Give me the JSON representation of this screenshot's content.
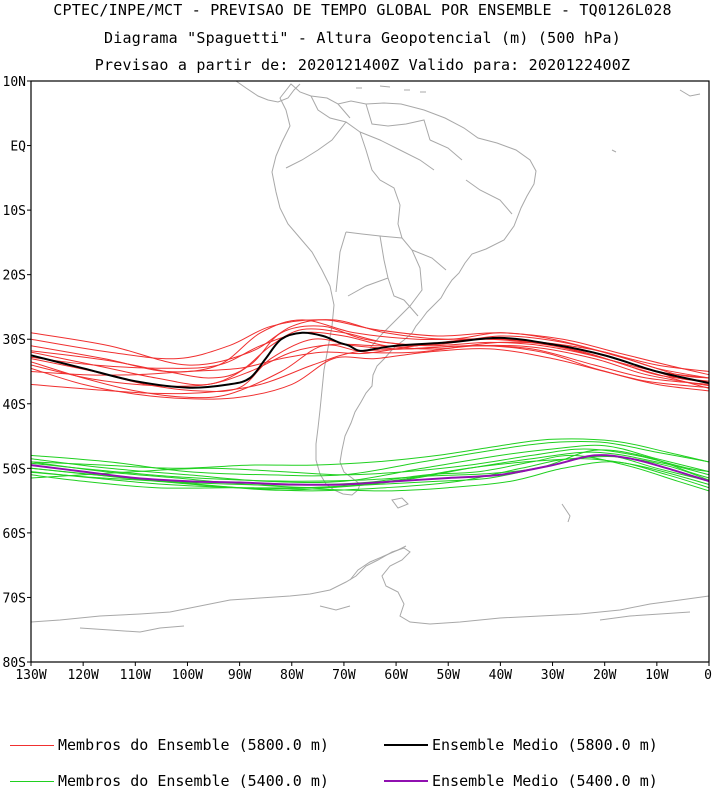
{
  "titles": {
    "line1": "CPTEC/INPE/MCT - PREVISAO DE TEMPO GLOBAL POR ENSEMBLE - TQ0126L028",
    "line2": "Diagrama \"Spaguetti\" - Altura Geopotencial (m) (500 hPa)",
    "line3": "Previsao a partir de: 2020121400Z  Valido para: 2020122400Z"
  },
  "axes": {
    "lat_ticks": [
      "10N",
      "EQ",
      "10S",
      "20S",
      "30S",
      "40S",
      "50S",
      "60S",
      "70S",
      "80S"
    ],
    "lon_ticks": [
      "130W",
      "120W",
      "110W",
      "100W",
      "90W",
      "80W",
      "70W",
      "60W",
      "50W",
      "40W",
      "30W",
      "20W",
      "10W",
      "0"
    ]
  },
  "legend": [
    {
      "label": "Membros do Ensemble (5800.0 m)",
      "color": "#f03030",
      "kind": "member"
    },
    {
      "label": "Ensemble Medio (5800.0 m)",
      "color": "#000000",
      "kind": "mean"
    },
    {
      "label": "Membros do Ensemble (5400.0 m)",
      "color": "#20d020",
      "kind": "member"
    },
    {
      "label": "Ensemble Medio (5400.0 m)",
      "color": "#9010b0",
      "kind": "mean"
    }
  ],
  "colors": {
    "coast": "#a8a8a8",
    "c5800_members": "#f03030",
    "c5800_mean": "#000000",
    "c5400_members": "#20d020",
    "c5400_mean": "#9010b0"
  },
  "map_extent": {
    "lon": [
      -130,
      0
    ],
    "lat": [
      -80,
      10
    ]
  },
  "contours": {
    "c5800_mean": [
      [
        -130,
        -32.5
      ],
      [
        -120,
        -34.5
      ],
      [
        -110,
        -36.5
      ],
      [
        -100,
        -37.5
      ],
      [
        -92,
        -37
      ],
      [
        -88,
        -36
      ],
      [
        -85,
        -33
      ],
      [
        -82,
        -30
      ],
      [
        -78,
        -29
      ],
      [
        -74,
        -29.5
      ],
      [
        -71,
        -30.5
      ],
      [
        -69,
        -31
      ],
      [
        -67,
        -31.8
      ],
      [
        -64,
        -31.5
      ],
      [
        -60,
        -31
      ],
      [
        -50,
        -30.5
      ],
      [
        -40,
        -29.8
      ],
      [
        -30,
        -30.8
      ],
      [
        -20,
        -32.5
      ],
      [
        -10,
        -35
      ],
      [
        0,
        -36.8
      ]
    ],
    "c5800_members": [
      [
        [
          -130,
          -29
        ],
        [
          -115,
          -31
        ],
        [
          -100,
          -34
        ],
        [
          -88,
          -32
        ],
        [
          -80,
          -28
        ],
        [
          -72,
          -27
        ],
        [
          -62,
          -29
        ],
        [
          -50,
          -30
        ],
        [
          -40,
          -29
        ],
        [
          -30,
          -30
        ],
        [
          -20,
          -32
        ],
        [
          -10,
          -34
        ],
        [
          0,
          -35
        ]
      ],
      [
        [
          -130,
          -30
        ],
        [
          -115,
          -32
        ],
        [
          -102,
          -33
        ],
        [
          -92,
          -31
        ],
        [
          -84,
          -28
        ],
        [
          -74,
          -27
        ],
        [
          -64,
          -28.5
        ],
        [
          -52,
          -29.5
        ],
        [
          -40,
          -29
        ],
        [
          -28,
          -30
        ],
        [
          -18,
          -32
        ],
        [
          -8,
          -34
        ],
        [
          0,
          -35.5
        ]
      ],
      [
        [
          -130,
          -31
        ],
        [
          -116,
          -33
        ],
        [
          -104,
          -35
        ],
        [
          -94,
          -34
        ],
        [
          -86,
          -29
        ],
        [
          -78,
          -27
        ],
        [
          -68,
          -29
        ],
        [
          -56,
          -30
        ],
        [
          -42,
          -30
        ],
        [
          -30,
          -31
        ],
        [
          -20,
          -33
        ],
        [
          -10,
          -35
        ],
        [
          0,
          -36
        ]
      ],
      [
        [
          -130,
          -32
        ],
        [
          -118,
          -34
        ],
        [
          -106,
          -36
        ],
        [
          -96,
          -37
        ],
        [
          -88,
          -34
        ],
        [
          -82,
          -29
        ],
        [
          -74,
          -28
        ],
        [
          -66,
          -30
        ],
        [
          -54,
          -31
        ],
        [
          -42,
          -30.5
        ],
        [
          -32,
          -31
        ],
        [
          -20,
          -33
        ],
        [
          -10,
          -35.5
        ],
        [
          0,
          -36.5
        ]
      ],
      [
        [
          -130,
          -33
        ],
        [
          -118,
          -35
        ],
        [
          -108,
          -37
        ],
        [
          -98,
          -38
        ],
        [
          -90,
          -37.5
        ],
        [
          -84,
          -33
        ],
        [
          -76,
          -30
        ],
        [
          -68,
          -31
        ],
        [
          -58,
          -31.5
        ],
        [
          -46,
          -31
        ],
        [
          -34,
          -31.5
        ],
        [
          -22,
          -34
        ],
        [
          -12,
          -36
        ],
        [
          0,
          -37
        ]
      ],
      [
        [
          -130,
          -33.5
        ],
        [
          -120,
          -36
        ],
        [
          -110,
          -38
        ],
        [
          -100,
          -39
        ],
        [
          -92,
          -38.5
        ],
        [
          -82,
          -35
        ],
        [
          -74,
          -31
        ],
        [
          -66,
          -32
        ],
        [
          -56,
          -32
        ],
        [
          -44,
          -31
        ],
        [
          -32,
          -32
        ],
        [
          -22,
          -34.5
        ],
        [
          -12,
          -36.5
        ],
        [
          0,
          -37.5
        ]
      ],
      [
        [
          -130,
          -34.5
        ],
        [
          -120,
          -37
        ],
        [
          -110,
          -38.5
        ],
        [
          -100,
          -39.2
        ],
        [
          -90,
          -39
        ],
        [
          -80,
          -37
        ],
        [
          -72,
          -33
        ],
        [
          -64,
          -33
        ],
        [
          -54,
          -32
        ],
        [
          -42,
          -31.5
        ],
        [
          -30,
          -33
        ],
        [
          -20,
          -35
        ],
        [
          -10,
          -37
        ],
        [
          0,
          -38
        ]
      ],
      [
        [
          -130,
          -37
        ],
        [
          -118,
          -37.8
        ],
        [
          -106,
          -38.4
        ],
        [
          -96,
          -38.2
        ],
        [
          -86,
          -37
        ],
        [
          -76,
          -34
        ],
        [
          -68,
          -32
        ],
        [
          -58,
          -31.5
        ],
        [
          -46,
          -31
        ],
        [
          -34,
          -31.2
        ],
        [
          -22,
          -33
        ],
        [
          -12,
          -35.5
        ],
        [
          0,
          -37.2
        ]
      ],
      [
        [
          -130,
          -35
        ],
        [
          -120,
          -35.5
        ],
        [
          -110,
          -35.5
        ],
        [
          -100,
          -35
        ],
        [
          -90,
          -34.5
        ],
        [
          -82,
          -33
        ],
        [
          -74,
          -32
        ],
        [
          -66,
          -32.2
        ],
        [
          -56,
          -31
        ],
        [
          -44,
          -30
        ],
        [
          -32,
          -30.5
        ],
        [
          -20,
          -32
        ],
        [
          -10,
          -34.5
        ],
        [
          0,
          -36
        ]
      ],
      [
        [
          -130,
          -32.8
        ],
        [
          -118,
          -34
        ],
        [
          -104,
          -34.5
        ],
        [
          -94,
          -34
        ],
        [
          -86,
          -31
        ],
        [
          -78,
          -29
        ],
        [
          -70,
          -29.5
        ],
        [
          -62,
          -31
        ],
        [
          -52,
          -31.5
        ],
        [
          -40,
          -30.5
        ],
        [
          -28,
          -31
        ],
        [
          -16,
          -33.5
        ],
        [
          -6,
          -36
        ],
        [
          0,
          -36.5
        ]
      ],
      [
        [
          -130,
          -31.8
        ],
        [
          -116,
          -33.2
        ],
        [
          -104,
          -35
        ],
        [
          -96,
          -36
        ],
        [
          -90,
          -35
        ],
        [
          -84,
          -31
        ],
        [
          -78,
          -28.5
        ],
        [
          -70,
          -29
        ],
        [
          -62,
          -30.5
        ],
        [
          -52,
          -30.8
        ],
        [
          -40,
          -29.5
        ],
        [
          -28,
          -30.5
        ],
        [
          -16,
          -33
        ],
        [
          -6,
          -35.5
        ],
        [
          0,
          -36
        ]
      ],
      [
        [
          -130,
          -34
        ],
        [
          -118,
          -36.2
        ],
        [
          -106,
          -37.2
        ],
        [
          -96,
          -37
        ],
        [
          -88,
          -35
        ],
        [
          -80,
          -32
        ],
        [
          -72,
          -30.8
        ],
        [
          -64,
          -31
        ],
        [
          -56,
          -31
        ],
        [
          -46,
          -30
        ],
        [
          -36,
          -30.2
        ],
        [
          -24,
          -32
        ],
        [
          -14,
          -34.5
        ],
        [
          0,
          -37.6
        ]
      ]
    ],
    "c5400_mean": [
      [
        -130,
        -49.5
      ],
      [
        -120,
        -50.5
      ],
      [
        -110,
        -51.5
      ],
      [
        -100,
        -52
      ],
      [
        -90,
        -52.2
      ],
      [
        -80,
        -52.5
      ],
      [
        -70,
        -52.5
      ],
      [
        -60,
        -52
      ],
      [
        -50,
        -51.5
      ],
      [
        -40,
        -51
      ],
      [
        -30,
        -49.5
      ],
      [
        -22,
        -48
      ],
      [
        -15,
        -48.5
      ],
      [
        -8,
        -50
      ],
      [
        0,
        -52
      ]
    ],
    "c5400_members": [
      [
        [
          -130,
          -48
        ],
        [
          -115,
          -49
        ],
        [
          -100,
          -50.5
        ],
        [
          -85,
          -51
        ],
        [
          -70,
          -51
        ],
        [
          -55,
          -49
        ],
        [
          -40,
          -47
        ],
        [
          -30,
          -46
        ],
        [
          -20,
          -46
        ],
        [
          -10,
          -47.5
        ],
        [
          0,
          -49
        ]
      ],
      [
        [
          -130,
          -48.5
        ],
        [
          -115,
          -50
        ],
        [
          -100,
          -51
        ],
        [
          -85,
          -52
        ],
        [
          -70,
          -52
        ],
        [
          -55,
          -50
        ],
        [
          -40,
          -48
        ],
        [
          -30,
          -47
        ],
        [
          -20,
          -46.5
        ],
        [
          -10,
          -48.5
        ],
        [
          0,
          -50.5
        ]
      ],
      [
        [
          -130,
          -49
        ],
        [
          -116,
          -50.5
        ],
        [
          -102,
          -51.5
        ],
        [
          -88,
          -52.5
        ],
        [
          -74,
          -53
        ],
        [
          -60,
          -52
        ],
        [
          -46,
          -50
        ],
        [
          -34,
          -48.5
        ],
        [
          -22,
          -47.5
        ],
        [
          -10,
          -49
        ],
        [
          0,
          -51
        ]
      ],
      [
        [
          -130,
          -50
        ],
        [
          -118,
          -51
        ],
        [
          -104,
          -52
        ],
        [
          -90,
          -53
        ],
        [
          -76,
          -53.5
        ],
        [
          -62,
          -53
        ],
        [
          -48,
          -52
        ],
        [
          -36,
          -50
        ],
        [
          -26,
          -48.5
        ],
        [
          -14,
          -49.5
        ],
        [
          0,
          -52.5
        ]
      ],
      [
        [
          -130,
          -50.5
        ],
        [
          -118,
          -51.5
        ],
        [
          -104,
          -52.5
        ],
        [
          -90,
          -53
        ],
        [
          -76,
          -53.2
        ],
        [
          -62,
          -53.5
        ],
        [
          -50,
          -53
        ],
        [
          -38,
          -52
        ],
        [
          -28,
          -50
        ],
        [
          -18,
          -49
        ],
        [
          -8,
          -51
        ],
        [
          0,
          -53
        ]
      ],
      [
        [
          -130,
          -51
        ],
        [
          -120,
          -52
        ],
        [
          -106,
          -53
        ],
        [
          -92,
          -53
        ],
        [
          -78,
          -53
        ],
        [
          -64,
          -52.5
        ],
        [
          -52,
          -52
        ],
        [
          -42,
          -51.5
        ],
        [
          -30,
          -49.5
        ],
        [
          -20,
          -48
        ],
        [
          -10,
          -50
        ],
        [
          0,
          -52
        ]
      ],
      [
        [
          -130,
          -51.5
        ],
        [
          -120,
          -51
        ],
        [
          -110,
          -50.5
        ],
        [
          -96,
          -50
        ],
        [
          -82,
          -50.5
        ],
        [
          -70,
          -51
        ],
        [
          -58,
          -50.5
        ],
        [
          -46,
          -49.5
        ],
        [
          -34,
          -48
        ],
        [
          -24,
          -47
        ],
        [
          -14,
          -48
        ],
        [
          -4,
          -50
        ],
        [
          0,
          -50.5
        ]
      ],
      [
        [
          -130,
          -49
        ],
        [
          -116,
          -49.5
        ],
        [
          -102,
          -50
        ],
        [
          -88,
          -49.5
        ],
        [
          -76,
          -49.5
        ],
        [
          -64,
          -49
        ],
        [
          -52,
          -48
        ],
        [
          -40,
          -46.5
        ],
        [
          -30,
          -45.5
        ],
        [
          -18,
          -45.8
        ],
        [
          -8,
          -47.5
        ],
        [
          0,
          -49
        ]
      ],
      [
        [
          -130,
          -50
        ],
        [
          -120,
          -50.8
        ],
        [
          -108,
          -51.8
        ],
        [
          -94,
          -52.4
        ],
        [
          -80,
          -52.6
        ],
        [
          -66,
          -52.2
        ],
        [
          -54,
          -51
        ],
        [
          -44,
          -50.5
        ],
        [
          -34,
          -49
        ],
        [
          -26,
          -48
        ],
        [
          -16,
          -49.5
        ],
        [
          -6,
          -52
        ],
        [
          0,
          -53.5
        ]
      ],
      [
        [
          -130,
          -49.2
        ],
        [
          -118,
          -50.2
        ],
        [
          -104,
          -51.2
        ],
        [
          -90,
          -51.8
        ],
        [
          -78,
          -52
        ],
        [
          -66,
          -51.8
        ],
        [
          -54,
          -51.2
        ],
        [
          -42,
          -50.8
        ],
        [
          -32,
          -49.8
        ],
        [
          -22,
          -47.2
        ],
        [
          -12,
          -48.2
        ],
        [
          -4,
          -50.5
        ],
        [
          0,
          -51.5
        ]
      ],
      [
        [
          -130,
          -50.6
        ],
        [
          -118,
          -51.4
        ],
        [
          -106,
          -52
        ],
        [
          -94,
          -52.8
        ],
        [
          -82,
          -53.4
        ],
        [
          -70,
          -52.8
        ],
        [
          -58,
          -51.6
        ],
        [
          -48,
          -50.2
        ],
        [
          -38,
          -49.2
        ],
        [
          -28,
          -48.6
        ],
        [
          -18,
          -48.2
        ],
        [
          -8,
          -49.6
        ],
        [
          0,
          -51.8
        ]
      ]
    ]
  }
}
